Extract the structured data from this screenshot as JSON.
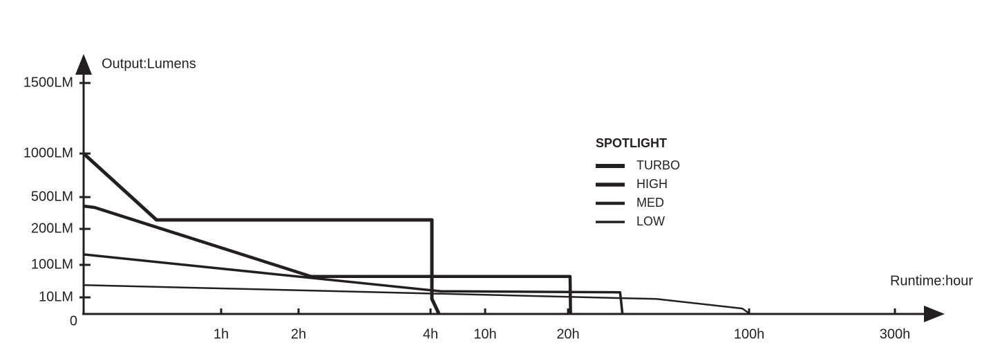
{
  "chart_data": {
    "type": "line",
    "y_label": "Output:Lumens",
    "x_label": "Runtime:hour",
    "legend_title": "SPOTLIGHT",
    "xlim": [
      0,
      300
    ],
    "xticks": [
      {
        "value": 1,
        "label": "1h"
      },
      {
        "value": 2,
        "label": "2h"
      },
      {
        "value": 4,
        "label": "4h"
      },
      {
        "value": 10,
        "label": "10h"
      },
      {
        "value": 20,
        "label": "20h"
      },
      {
        "value": 100,
        "label": "100h"
      },
      {
        "value": 300,
        "label": "300h"
      }
    ],
    "ylim": [
      0,
      1500
    ],
    "yticks": [
      0,
      {
        "value": 10,
        "label": "10LM"
      },
      {
        "value": 100,
        "label": "100LM"
      },
      {
        "value": 200,
        "label": "200LM"
      },
      {
        "value": 500,
        "label": "500LM"
      },
      {
        "value": 1000,
        "label": "1000LM"
      },
      {
        "value": 1500,
        "label": "1500LM"
      }
    ],
    "series": [
      {
        "name": "TURBO",
        "color": "#231f20",
        "line_width": 5,
        "x": [
          0,
          0.53,
          4.15,
          4.15,
          4.9
        ],
        "values": [
          1000,
          285,
          285,
          9,
          0
        ]
      },
      {
        "name": "HIGH",
        "color": "#231f20",
        "line_width": 4.5,
        "x": [
          0,
          0.08,
          2.19,
          20.9,
          21.1
        ],
        "values": [
          415,
          402,
          68,
          68,
          0
        ]
      },
      {
        "name": "MED",
        "color": "#231f20",
        "line_width": 3.5,
        "x": [
          0,
          5.1,
          43,
          44
        ],
        "values": [
          129,
          27,
          24,
          0
        ]
      },
      {
        "name": "LOW",
        "color": "#231f20",
        "line_width": 2.5,
        "x": [
          0,
          59,
          97,
          100
        ],
        "values": [
          44,
          9,
          3,
          0
        ]
      }
    ]
  }
}
